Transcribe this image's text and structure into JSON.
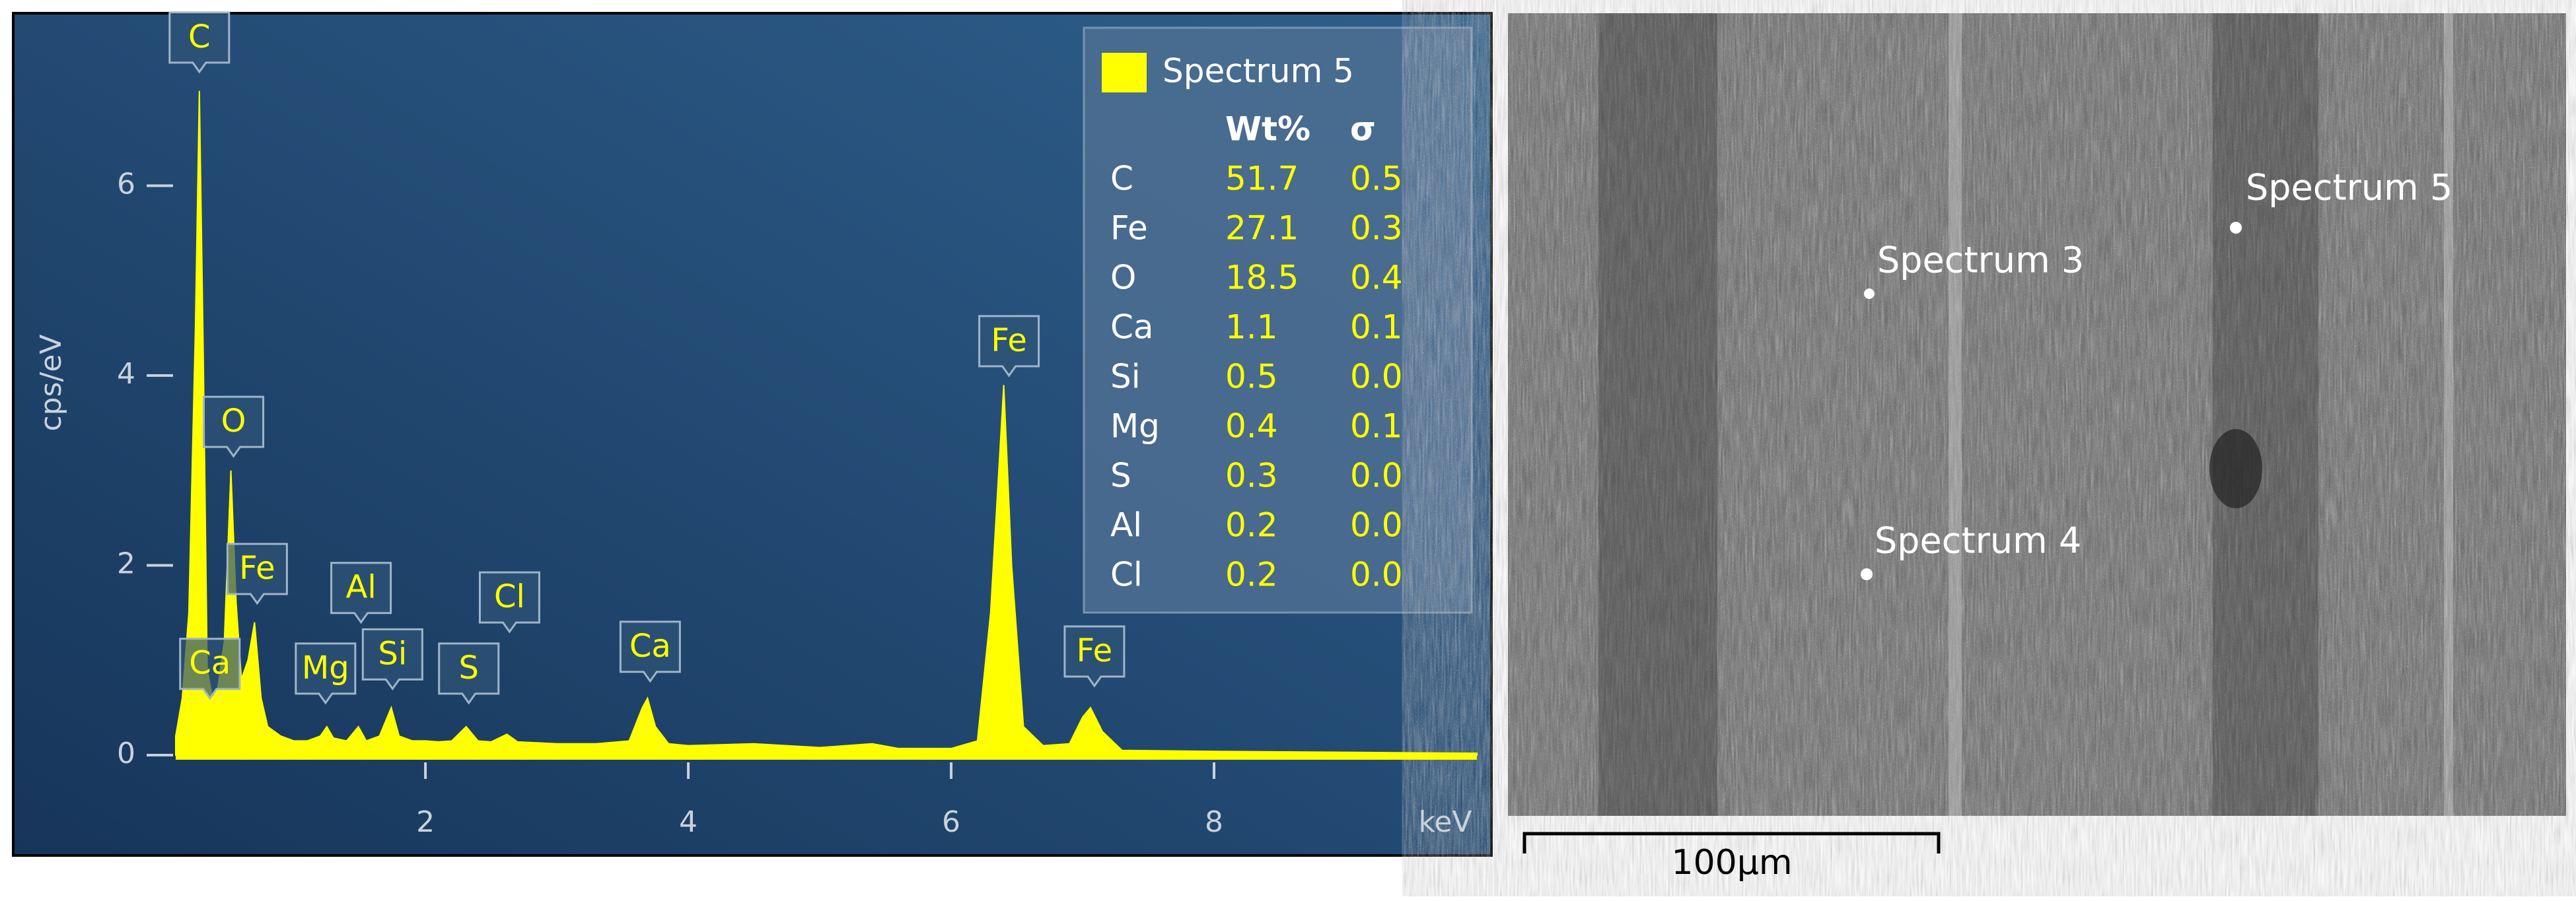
{
  "chart_data": {
    "type": "area",
    "color": "#ffff00",
    "x": [
      0.1,
      0.15,
      0.2,
      0.25,
      0.28,
      0.31,
      0.34,
      0.38,
      0.42,
      0.47,
      0.52,
      0.56,
      0.6,
      0.65,
      0.7,
      0.75,
      0.8,
      0.9,
      1.0,
      1.1,
      1.2,
      1.25,
      1.3,
      1.4,
      1.49,
      1.55,
      1.65,
      1.74,
      1.8,
      1.9,
      2.0,
      2.1,
      2.2,
      2.31,
      2.4,
      2.5,
      2.62,
      2.7,
      3.0,
      3.3,
      3.55,
      3.65,
      3.69,
      3.75,
      3.85,
      4.0,
      4.5,
      5.0,
      5.4,
      5.6,
      6.0,
      6.2,
      6.3,
      6.4,
      6.46,
      6.55,
      6.7,
      6.9,
      7.0,
      7.06,
      7.15,
      7.3,
      8.0,
      9.0,
      10.0
    ],
    "values": [
      0.2,
      0.6,
      1.5,
      4.5,
      7.0,
      4.2,
      0.9,
      0.6,
      0.7,
      1.2,
      3.0,
      1.6,
      0.8,
      1.0,
      1.4,
      0.6,
      0.3,
      0.2,
      0.15,
      0.15,
      0.2,
      0.3,
      0.18,
      0.15,
      0.3,
      0.15,
      0.2,
      0.5,
      0.2,
      0.15,
      0.15,
      0.14,
      0.15,
      0.3,
      0.15,
      0.14,
      0.22,
      0.14,
      0.12,
      0.12,
      0.15,
      0.5,
      0.6,
      0.3,
      0.12,
      0.1,
      0.12,
      0.08,
      0.12,
      0.07,
      0.07,
      0.15,
      1.5,
      3.9,
      2.0,
      0.3,
      0.1,
      0.12,
      0.4,
      0.5,
      0.25,
      0.05,
      0.04,
      0.03,
      0.02
    ],
    "xlim": [
      0.1,
      10
    ],
    "ylim": [
      0,
      7.7
    ],
    "xticks": [
      2,
      4,
      6,
      8
    ],
    "yticks": [
      0,
      2,
      4,
      6
    ],
    "xlabel": "keV",
    "ylabel": "cps/eV",
    "peak_labels": [
      {
        "text": "C",
        "x": 0.28,
        "y": 7.2
      },
      {
        "text": "O",
        "x": 0.54,
        "y": 3.15
      },
      {
        "text": "Fe",
        "x": 0.72,
        "y": 1.6
      },
      {
        "text": "Ca",
        "x": 0.36,
        "y": 0.6
      },
      {
        "text": "Mg",
        "x": 1.24,
        "y": 0.55
      },
      {
        "text": "Al",
        "x": 1.51,
        "y": 1.4
      },
      {
        "text": "Si",
        "x": 1.75,
        "y": 0.7
      },
      {
        "text": "S",
        "x": 2.33,
        "y": 0.55
      },
      {
        "text": "Cl",
        "x": 2.64,
        "y": 1.3
      },
      {
        "text": "Ca",
        "x": 3.71,
        "y": 0.78
      },
      {
        "text": "Fe",
        "x": 6.44,
        "y": 4.0
      },
      {
        "text": "Fe",
        "x": 7.09,
        "y": 0.73
      }
    ],
    "legend": {
      "name": "Spectrum 5",
      "columns": [
        "Wt%",
        "σ"
      ],
      "rows": [
        [
          "C",
          "51.7",
          "0.5"
        ],
        [
          "Fe",
          "27.1",
          "0.3"
        ],
        [
          "O",
          "18.5",
          "0.4"
        ],
        [
          "Ca",
          "1.1",
          "0.1"
        ],
        [
          "Si",
          "0.5",
          "0.0"
        ],
        [
          "Mg",
          "0.4",
          "0.1"
        ],
        [
          "S",
          "0.3",
          "0.0"
        ],
        [
          "Al",
          "0.2",
          "0.0"
        ],
        [
          "Cl",
          "0.2",
          "0.0"
        ]
      ]
    }
  },
  "image": {
    "labels": [
      "Spectrum 3",
      "Spectrum 4",
      "Spectrum 5"
    ],
    "scale_bar": "100µm"
  }
}
